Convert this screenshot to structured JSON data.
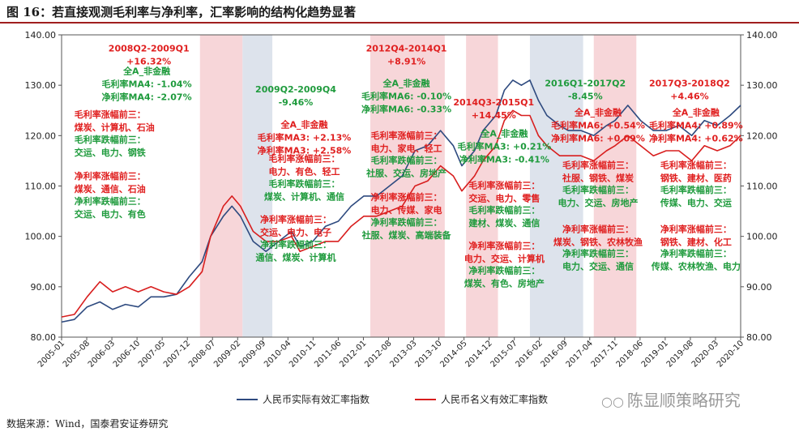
{
  "title": "图 16：若直接观测毛利率与净利率，汇率影响的结构化趋势显著",
  "source": "数据来源：Wind，国泰君安证券研究",
  "watermark": "陈显顺策略研究",
  "colors": {
    "real": "#2e4a7f",
    "nominal": "#d81e1e",
    "green": "#1f9b3d",
    "red": "#e02020",
    "pink": "#f7d6d9",
    "blue": "#dde3ec"
  },
  "chart_data": {
    "type": "line",
    "xlabel": "",
    "ylabel": "",
    "ylim": [
      80,
      140
    ],
    "yticks": [
      "80.00",
      "90.00",
      "100.00",
      "110.00",
      "120.00",
      "130.00",
      "140.00"
    ],
    "xticks": [
      "2005-01",
      "2005-08",
      "2006-03",
      "2006-10",
      "2007-05",
      "2007-12",
      "2008-07",
      "2009-02",
      "2009-09",
      "2010-04",
      "2010-11",
      "2011-06",
      "2012-01",
      "2012-08",
      "2013-03",
      "2013-10",
      "2014-05",
      "2014-12",
      "2015-07",
      "2016-02",
      "2016-09",
      "2017-04",
      "2017-11",
      "2018-06",
      "2019-01",
      "2019-08",
      "2020-03",
      "2020-10"
    ],
    "legend_position": "bottom",
    "series": [
      {
        "name": "人民币实际有效汇率指数",
        "color": "#2e4a7f",
        "points": [
          [
            2005.0,
            83
          ],
          [
            2005.3,
            83.5
          ],
          [
            2005.6,
            86
          ],
          [
            2005.9,
            87
          ],
          [
            2006.2,
            85.5
          ],
          [
            2006.5,
            86.5
          ],
          [
            2006.8,
            86
          ],
          [
            2007.1,
            88
          ],
          [
            2007.4,
            88
          ],
          [
            2007.7,
            88.5
          ],
          [
            2008.0,
            92
          ],
          [
            2008.3,
            95
          ],
          [
            2008.5,
            100
          ],
          [
            2008.8,
            104
          ],
          [
            2009.0,
            106
          ],
          [
            2009.2,
            104
          ],
          [
            2009.5,
            99
          ],
          [
            2009.8,
            97
          ],
          [
            2010.1,
            99
          ],
          [
            2010.4,
            101
          ],
          [
            2010.6,
            98
          ],
          [
            2010.9,
            99
          ],
          [
            2011.2,
            102
          ],
          [
            2011.5,
            103
          ],
          [
            2011.8,
            106
          ],
          [
            2012.1,
            108
          ],
          [
            2012.4,
            108
          ],
          [
            2012.7,
            110
          ],
          [
            2013.0,
            112
          ],
          [
            2013.3,
            117
          ],
          [
            2013.6,
            118
          ],
          [
            2013.9,
            121
          ],
          [
            2014.2,
            118
          ],
          [
            2014.4,
            114
          ],
          [
            2014.7,
            117
          ],
          [
            2014.9,
            121
          ],
          [
            2015.2,
            124
          ],
          [
            2015.4,
            129
          ],
          [
            2015.6,
            131
          ],
          [
            2015.8,
            130
          ],
          [
            2016.0,
            131
          ],
          [
            2016.2,
            127
          ],
          [
            2016.4,
            124
          ],
          [
            2016.7,
            122
          ],
          [
            2016.9,
            121
          ],
          [
            2017.2,
            121
          ],
          [
            2017.5,
            120
          ],
          [
            2017.8,
            122
          ],
          [
            2018.0,
            123
          ],
          [
            2018.3,
            126
          ],
          [
            2018.6,
            123
          ],
          [
            2018.9,
            121
          ],
          [
            2019.2,
            121
          ],
          [
            2019.5,
            122
          ],
          [
            2019.8,
            120
          ],
          [
            2020.1,
            123
          ],
          [
            2020.4,
            122
          ],
          [
            2020.7,
            124
          ],
          [
            2020.95,
            126
          ]
        ]
      },
      {
        "name": "人民币名义有效汇率指数",
        "color": "#d81e1e",
        "points": [
          [
            2005.0,
            84
          ],
          [
            2005.3,
            84.5
          ],
          [
            2005.6,
            88
          ],
          [
            2005.9,
            91
          ],
          [
            2006.2,
            89
          ],
          [
            2006.5,
            90
          ],
          [
            2006.8,
            89
          ],
          [
            2007.1,
            90
          ],
          [
            2007.4,
            89
          ],
          [
            2007.7,
            88.5
          ],
          [
            2008.0,
            90
          ],
          [
            2008.3,
            93
          ],
          [
            2008.5,
            100
          ],
          [
            2008.8,
            106
          ],
          [
            2009.0,
            108
          ],
          [
            2009.2,
            106
          ],
          [
            2009.5,
            101
          ],
          [
            2009.8,
            99
          ],
          [
            2010.1,
            99
          ],
          [
            2010.4,
            100
          ],
          [
            2010.6,
            97
          ],
          [
            2010.9,
            98
          ],
          [
            2011.2,
            99
          ],
          [
            2011.5,
            99
          ],
          [
            2011.8,
            102
          ],
          [
            2012.1,
            104
          ],
          [
            2012.4,
            104
          ],
          [
            2012.7,
            105
          ],
          [
            2013.0,
            106
          ],
          [
            2013.3,
            110
          ],
          [
            2013.6,
            111
          ],
          [
            2013.9,
            114
          ],
          [
            2014.2,
            112
          ],
          [
            2014.4,
            109
          ],
          [
            2014.7,
            112
          ],
          [
            2014.9,
            115
          ],
          [
            2015.2,
            118
          ],
          [
            2015.4,
            123
          ],
          [
            2015.6,
            125
          ],
          [
            2015.8,
            124
          ],
          [
            2016.0,
            124
          ],
          [
            2016.2,
            120
          ],
          [
            2016.4,
            118
          ],
          [
            2016.7,
            116
          ],
          [
            2016.9,
            116
          ],
          [
            2017.2,
            116
          ],
          [
            2017.5,
            115
          ],
          [
            2017.8,
            117
          ],
          [
            2018.0,
            118
          ],
          [
            2018.3,
            120
          ],
          [
            2018.6,
            118
          ],
          [
            2018.9,
            116
          ],
          [
            2019.2,
            117
          ],
          [
            2019.5,
            117
          ],
          [
            2019.8,
            115
          ],
          [
            2020.1,
            118
          ],
          [
            2020.4,
            117
          ],
          [
            2020.7,
            118
          ],
          [
            2020.95,
            120
          ]
        ]
      }
    ],
    "shaded_periods": [
      {
        "start": 2008.25,
        "end": 2009.25,
        "color": "pink"
      },
      {
        "start": 2009.25,
        "end": 2009.95,
        "color": "blue"
      },
      {
        "start": 2012.25,
        "end": 2014.0,
        "color": "pink"
      },
      {
        "start": 2014.5,
        "end": 2015.25,
        "color": "pink"
      },
      {
        "start": 2016.0,
        "end": 2017.25,
        "color": "blue"
      },
      {
        "start": 2017.5,
        "end": 2018.5,
        "color": "pink"
      }
    ],
    "annotations": [
      {
        "x": 2007.05,
        "y": 136.7,
        "color": "red",
        "lines": [
          "2008Q2-2009Q1",
          "+16.32%"
        ]
      },
      {
        "x": 2007.0,
        "y": 132.2,
        "color": "green",
        "lines": [
          "全A_非金融",
          "毛利率MA4: -1.04%",
          "净利率MA4: -2.07%"
        ]
      },
      {
        "x": 2005.3,
        "y": 123.6,
        "color": "red",
        "align": "start",
        "lines": [
          "毛利率涨幅前三：",
          "煤炭、计算机、石油"
        ]
      },
      {
        "x": 2005.3,
        "y": 118.6,
        "color": "green",
        "align": "start",
        "lines": [
          "毛利率跌幅前三：",
          "交运、电力、钢铁"
        ]
      },
      {
        "x": 2005.3,
        "y": 111.4,
        "color": "red",
        "align": "start",
        "lines": [
          "净利率涨幅前三：",
          "煤炭、通信、石油"
        ]
      },
      {
        "x": 2005.3,
        "y": 106.4,
        "color": "green",
        "align": "start",
        "lines": [
          "净利率跌幅前三：",
          "交运、电力、有色"
        ]
      },
      {
        "x": 2010.5,
        "y": 128.6,
        "color": "green",
        "lines": [
          "2009Q2-2009Q4",
          "-9.46%"
        ]
      },
      {
        "x": 2010.7,
        "y": 121.6,
        "color": "red",
        "lines": [
          "全A_非金融",
          "毛利率MA3: +2.13%",
          "净利率MA3: +2.58%"
        ]
      },
      {
        "x": 2010.7,
        "y": 114.8,
        "color": "red",
        "lines": [
          "毛利率涨幅前三：",
          "电力、有色、轻工"
        ]
      },
      {
        "x": 2010.7,
        "y": 109.8,
        "color": "green",
        "lines": [
          "毛利率跌幅前三：",
          "煤炭、计算机、通信"
        ]
      },
      {
        "x": 2010.5,
        "y": 102.8,
        "color": "red",
        "lines": [
          "净利率涨幅前三：",
          "交运、电力、电子"
        ]
      },
      {
        "x": 2010.5,
        "y": 97.8,
        "color": "green",
        "lines": [
          "净利率跌幅前三：",
          "通信、煤炭、计算机"
        ]
      },
      {
        "x": 2013.1,
        "y": 136.7,
        "color": "red",
        "lines": [
          "2012Q4-2014Q1",
          "+8.91%"
        ]
      },
      {
        "x": 2013.1,
        "y": 129.8,
        "color": "green",
        "lines": [
          "全A_非金融",
          "毛利率MA6: -0.10%",
          "净利率MA6: -0.33%"
        ]
      },
      {
        "x": 2013.1,
        "y": 119.4,
        "color": "red",
        "lines": [
          "毛利率涨幅前三：",
          "电力、家电、轻工"
        ]
      },
      {
        "x": 2013.1,
        "y": 114.5,
        "color": "green",
        "lines": [
          "毛利率跌幅前三：",
          "社服、交运、房地产"
        ]
      },
      {
        "x": 2013.1,
        "y": 107.2,
        "color": "red",
        "lines": [
          "净利率涨幅前三：",
          "电力、传媒、家电"
        ]
      },
      {
        "x": 2013.1,
        "y": 102.2,
        "color": "green",
        "lines": [
          "净利率跌幅前三：",
          "社服、煤炭、高端装备"
        ]
      },
      {
        "x": 2015.15,
        "y": 126.0,
        "color": "red",
        "lines": [
          "2014Q3-2015Q1",
          "+14.45%"
        ]
      },
      {
        "x": 2015.4,
        "y": 119.8,
        "color": "green",
        "lines": [
          "全A_非金融",
          "毛利率MA3: +0.21%",
          "净利率MA3: -0.41%"
        ]
      },
      {
        "x": 2015.4,
        "y": 109.5,
        "color": "red",
        "lines": [
          "毛利率涨幅前三：",
          "交运、电力、零售"
        ]
      },
      {
        "x": 2015.4,
        "y": 104.6,
        "color": "green",
        "lines": [
          "毛利率跌幅前三：",
          "建材、煤炭、通信"
        ]
      },
      {
        "x": 2015.4,
        "y": 97.5,
        "color": "red",
        "lines": [
          "净利率涨幅前三：",
          "电力、交运、计算机"
        ]
      },
      {
        "x": 2015.4,
        "y": 92.6,
        "color": "green",
        "lines": [
          "净利率跌幅前三：",
          "煤炭、有色、房地产"
        ]
      },
      {
        "x": 2017.3,
        "y": 129.8,
        "color": "green",
        "lines": [
          "2016Q1-2017Q2",
          "-8.45%"
        ]
      },
      {
        "x": 2017.6,
        "y": 124.0,
        "color": "red",
        "lines": [
          "全A_非金融",
          "毛利率MA6: +0.54%",
          "净利率MA6: +0.09%"
        ]
      },
      {
        "x": 2017.6,
        "y": 113.5,
        "color": "red",
        "lines": [
          "毛利率涨幅前三：",
          "社服、钢铁、煤炭"
        ]
      },
      {
        "x": 2017.6,
        "y": 108.6,
        "color": "green",
        "lines": [
          "毛利率跌幅前三：",
          "电力、交运、房地产"
        ]
      },
      {
        "x": 2017.6,
        "y": 100.8,
        "color": "red",
        "lines": [
          "净利率涨幅前三：",
          "煤炭、钢铁、农林牧渔"
        ]
      },
      {
        "x": 2017.6,
        "y": 96.0,
        "color": "green",
        "lines": [
          "净利率跌幅前三：",
          "电力、交运、通信"
        ]
      },
      {
        "x": 2019.75,
        "y": 129.8,
        "color": "red",
        "lines": [
          "2017Q3-2018Q2",
          "+4.46%"
        ]
      },
      {
        "x": 2019.9,
        "y": 124.0,
        "color": "red",
        "lines": [
          "全A_非金融",
          "毛利率MA4: +0.89%",
          "净利率MA4: +0.62%"
        ]
      },
      {
        "x": 2019.9,
        "y": 113.5,
        "color": "red",
        "lines": [
          "毛利率涨幅前三：",
          "钢铁、建材、医药"
        ]
      },
      {
        "x": 2019.9,
        "y": 108.6,
        "color": "green",
        "lines": [
          "毛利率跌幅前三：",
          "传媒、电力、交运"
        ]
      },
      {
        "x": 2019.9,
        "y": 100.8,
        "color": "red",
        "lines": [
          "净利率涨幅前三：",
          "钢铁、建材、化工"
        ]
      },
      {
        "x": 2019.9,
        "y": 96.0,
        "color": "green",
        "lines": [
          "净利率跌幅前三：",
          "传媒、农林牧渔、电力"
        ]
      }
    ]
  }
}
